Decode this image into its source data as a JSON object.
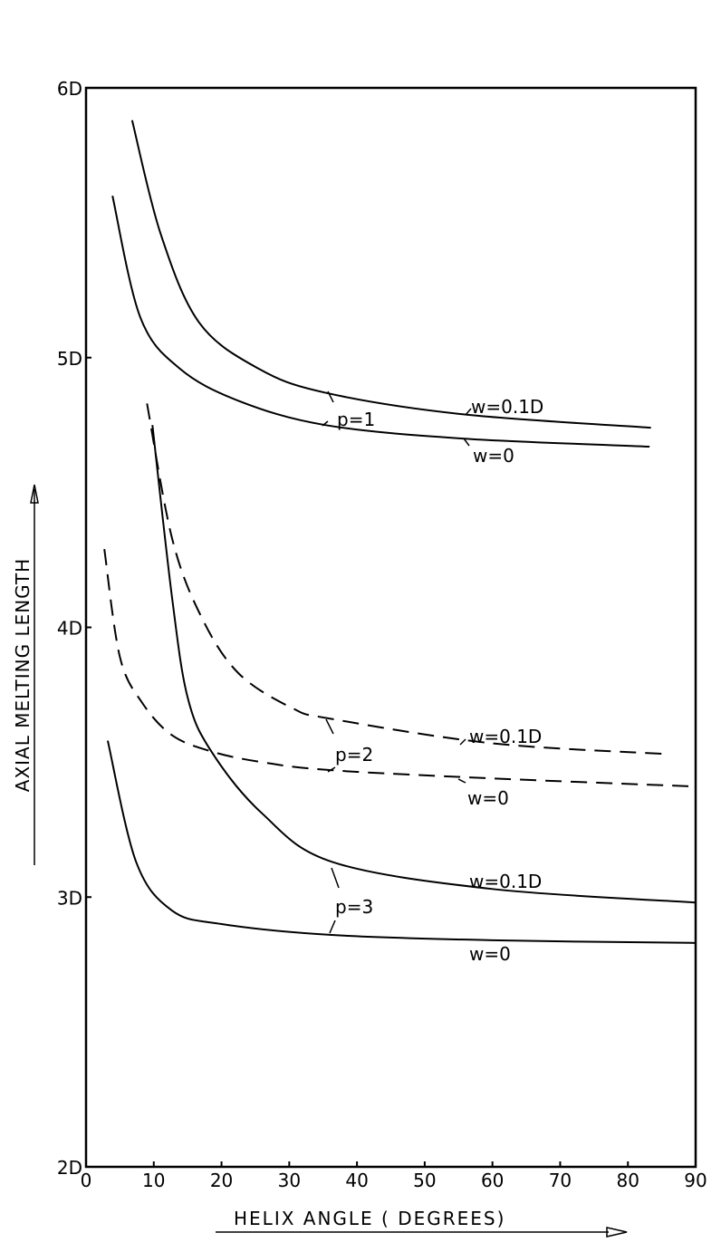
{
  "chart_data": {
    "type": "line",
    "title": "",
    "xlabel": "HELIX ANGLE ( DEGREES)",
    "ylabel": "AXIAL MELTING LENGTH",
    "xlim": [
      0,
      90
    ],
    "ylim": [
      2,
      6
    ],
    "x_ticks": [
      "0",
      "10",
      "20",
      "30",
      "40",
      "50",
      "60",
      "70",
      "80",
      "90"
    ],
    "y_ticks": [
      "2D",
      "3D",
      "4D",
      "5D",
      "6D"
    ],
    "y_unit": "D",
    "grid": false,
    "colors": {
      "line": "#000000"
    },
    "groups": [
      {
        "label": "p=1",
        "style": "solid",
        "series": [
          {
            "name": "w=0.1D",
            "points": [
              [
                6.8,
                5.88
              ],
              [
                11,
                5.46
              ],
              [
                16.7,
                5.13
              ],
              [
                25.4,
                4.96
              ],
              [
                35.3,
                4.87
              ],
              [
                55.6,
                4.79
              ],
              [
                83.4,
                4.74
              ]
            ]
          },
          {
            "name": "w=0",
            "points": [
              [
                3.9,
                5.6
              ],
              [
                8,
                5.15
              ],
              [
                13.8,
                4.96
              ],
              [
                22.5,
                4.84
              ],
              [
                35.3,
                4.75
              ],
              [
                55.6,
                4.7
              ],
              [
                83.2,
                4.67
              ]
            ]
          }
        ]
      },
      {
        "label": "p=2",
        "style": "dashed",
        "series": [
          {
            "name": "w=0.1D",
            "points": [
              [
                9,
                4.83
              ],
              [
                12.7,
                4.33
              ],
              [
                17,
                4.04
              ],
              [
                22.5,
                3.83
              ],
              [
                30.5,
                3.7
              ],
              [
                36.4,
                3.66
              ],
              [
                60,
                3.57
              ],
              [
                86,
                3.53
              ]
            ]
          },
          {
            "name": "w=0",
            "points": [
              [
                2.7,
                4.29
              ],
              [
                5,
                3.89
              ],
              [
                8.3,
                3.72
              ],
              [
                12.7,
                3.6
              ],
              [
                18.5,
                3.54
              ],
              [
                26,
                3.5
              ],
              [
                36.4,
                3.47
              ],
              [
                60,
                3.44
              ],
              [
                90,
                3.41
              ]
            ]
          }
        ]
      },
      {
        "label": "p=3",
        "style": "solid",
        "series": [
          {
            "name": "w=0.1D",
            "points": [
              [
                9.8,
                4.75
              ],
              [
                12.7,
                4.11
              ],
              [
                15,
                3.74
              ],
              [
                18.5,
                3.54
              ],
              [
                26,
                3.31
              ],
              [
                36.4,
                3.13
              ],
              [
                60,
                3.03
              ],
              [
                90,
                2.98
              ]
            ]
          },
          {
            "name": "w=0",
            "points": [
              [
                3.2,
                3.58
              ],
              [
                7.4,
                3.13
              ],
              [
                12.7,
                2.95
              ],
              [
                20,
                2.9
              ],
              [
                36,
                2.86
              ],
              [
                60,
                2.84
              ],
              [
                90,
                2.83
              ]
            ]
          }
        ]
      }
    ]
  }
}
